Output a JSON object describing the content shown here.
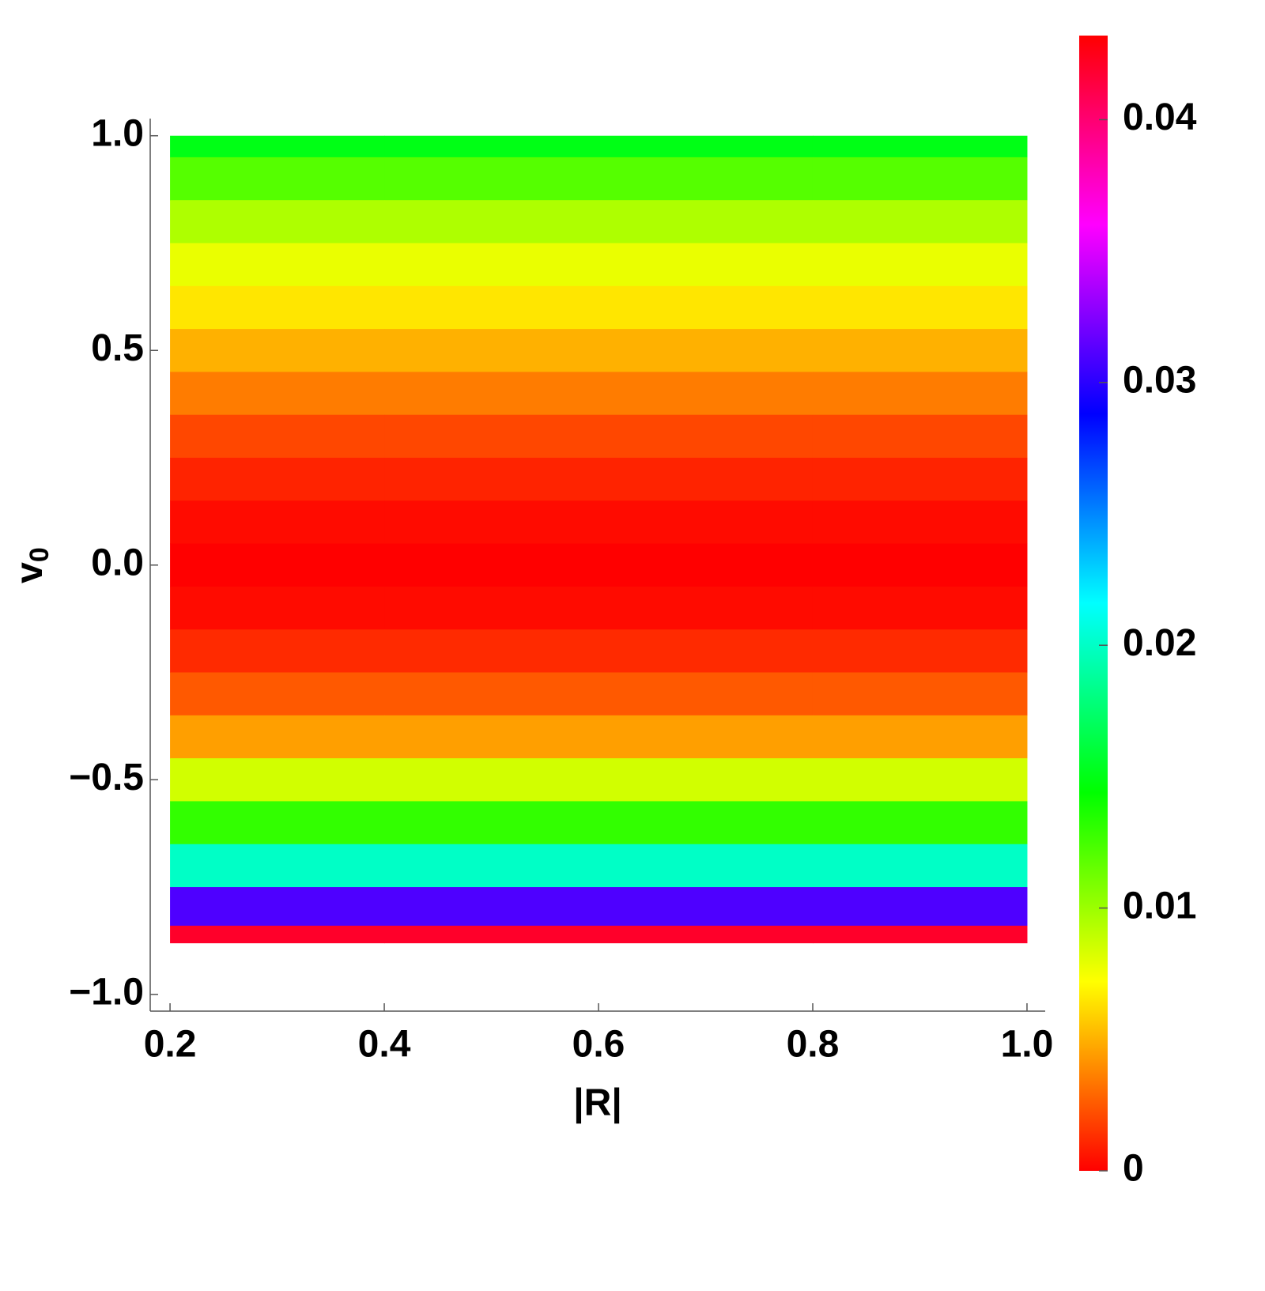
{
  "chart_data": {
    "type": "heatmap",
    "xlabel": "|R|",
    "ylabel": {
      "text": "v",
      "subscript": "0"
    },
    "x": [
      0.2,
      0.6,
      1.0
    ],
    "y": [
      1.0,
      0.9,
      0.8,
      0.7,
      0.6,
      0.5,
      0.4,
      0.3,
      0.2,
      0.1,
      0.0,
      -0.1,
      -0.2,
      -0.3,
      -0.4,
      -0.5,
      -0.6,
      -0.7,
      -0.8,
      -0.88
    ],
    "z": [
      [
        0.015,
        0.015,
        0.015
      ],
      [
        0.012,
        0.012,
        0.012
      ],
      [
        0.0095,
        0.0095,
        0.0095
      ],
      [
        0.0078,
        0.0078,
        0.0078
      ],
      [
        0.0065,
        0.0065,
        0.0065
      ],
      [
        0.005,
        0.005,
        0.005
      ],
      [
        0.0035,
        0.0035,
        0.0035
      ],
      [
        0.002,
        0.002,
        0.002
      ],
      [
        0.001,
        0.001,
        0.001
      ],
      [
        0.0003,
        0.0003,
        0.0003
      ],
      [
        0,
        0,
        0
      ],
      [
        0.0003,
        0.0003,
        0.0003
      ],
      [
        0.0012,
        0.0012,
        0.0012
      ],
      [
        0.0025,
        0.0025,
        0.0025
      ],
      [
        0.0045,
        0.0045,
        0.0045
      ],
      [
        0.0085,
        0.0085,
        0.0085
      ],
      [
        0.013,
        0.013,
        0.013
      ],
      [
        0.02,
        0.02,
        0.02
      ],
      [
        0.031,
        0.031,
        0.031
      ],
      [
        0.042,
        0.042,
        0.042
      ]
    ],
    "colormap": "hue",
    "xlim": [
      0.1815,
      1.017
    ],
    "ylim": [
      -1.039,
      1.04
    ],
    "xticks": [
      0.2,
      0.4,
      0.6,
      0.8,
      {
        "value": 1.0,
        "label": "1.0"
      }
    ],
    "yticks": [
      {
        "value": -1.0,
        "label": "−1.0"
      },
      {
        "value": -0.5,
        "label": "−0.5"
      },
      {
        "value": 0.0,
        "label": "0.0"
      },
      0.5,
      {
        "value": 1.0,
        "label": "1.0"
      }
    ],
    "clim": [
      0,
      0.0432
    ],
    "cticks": [
      0,
      0.01,
      0.02,
      0.03,
      0.04
    ]
  }
}
